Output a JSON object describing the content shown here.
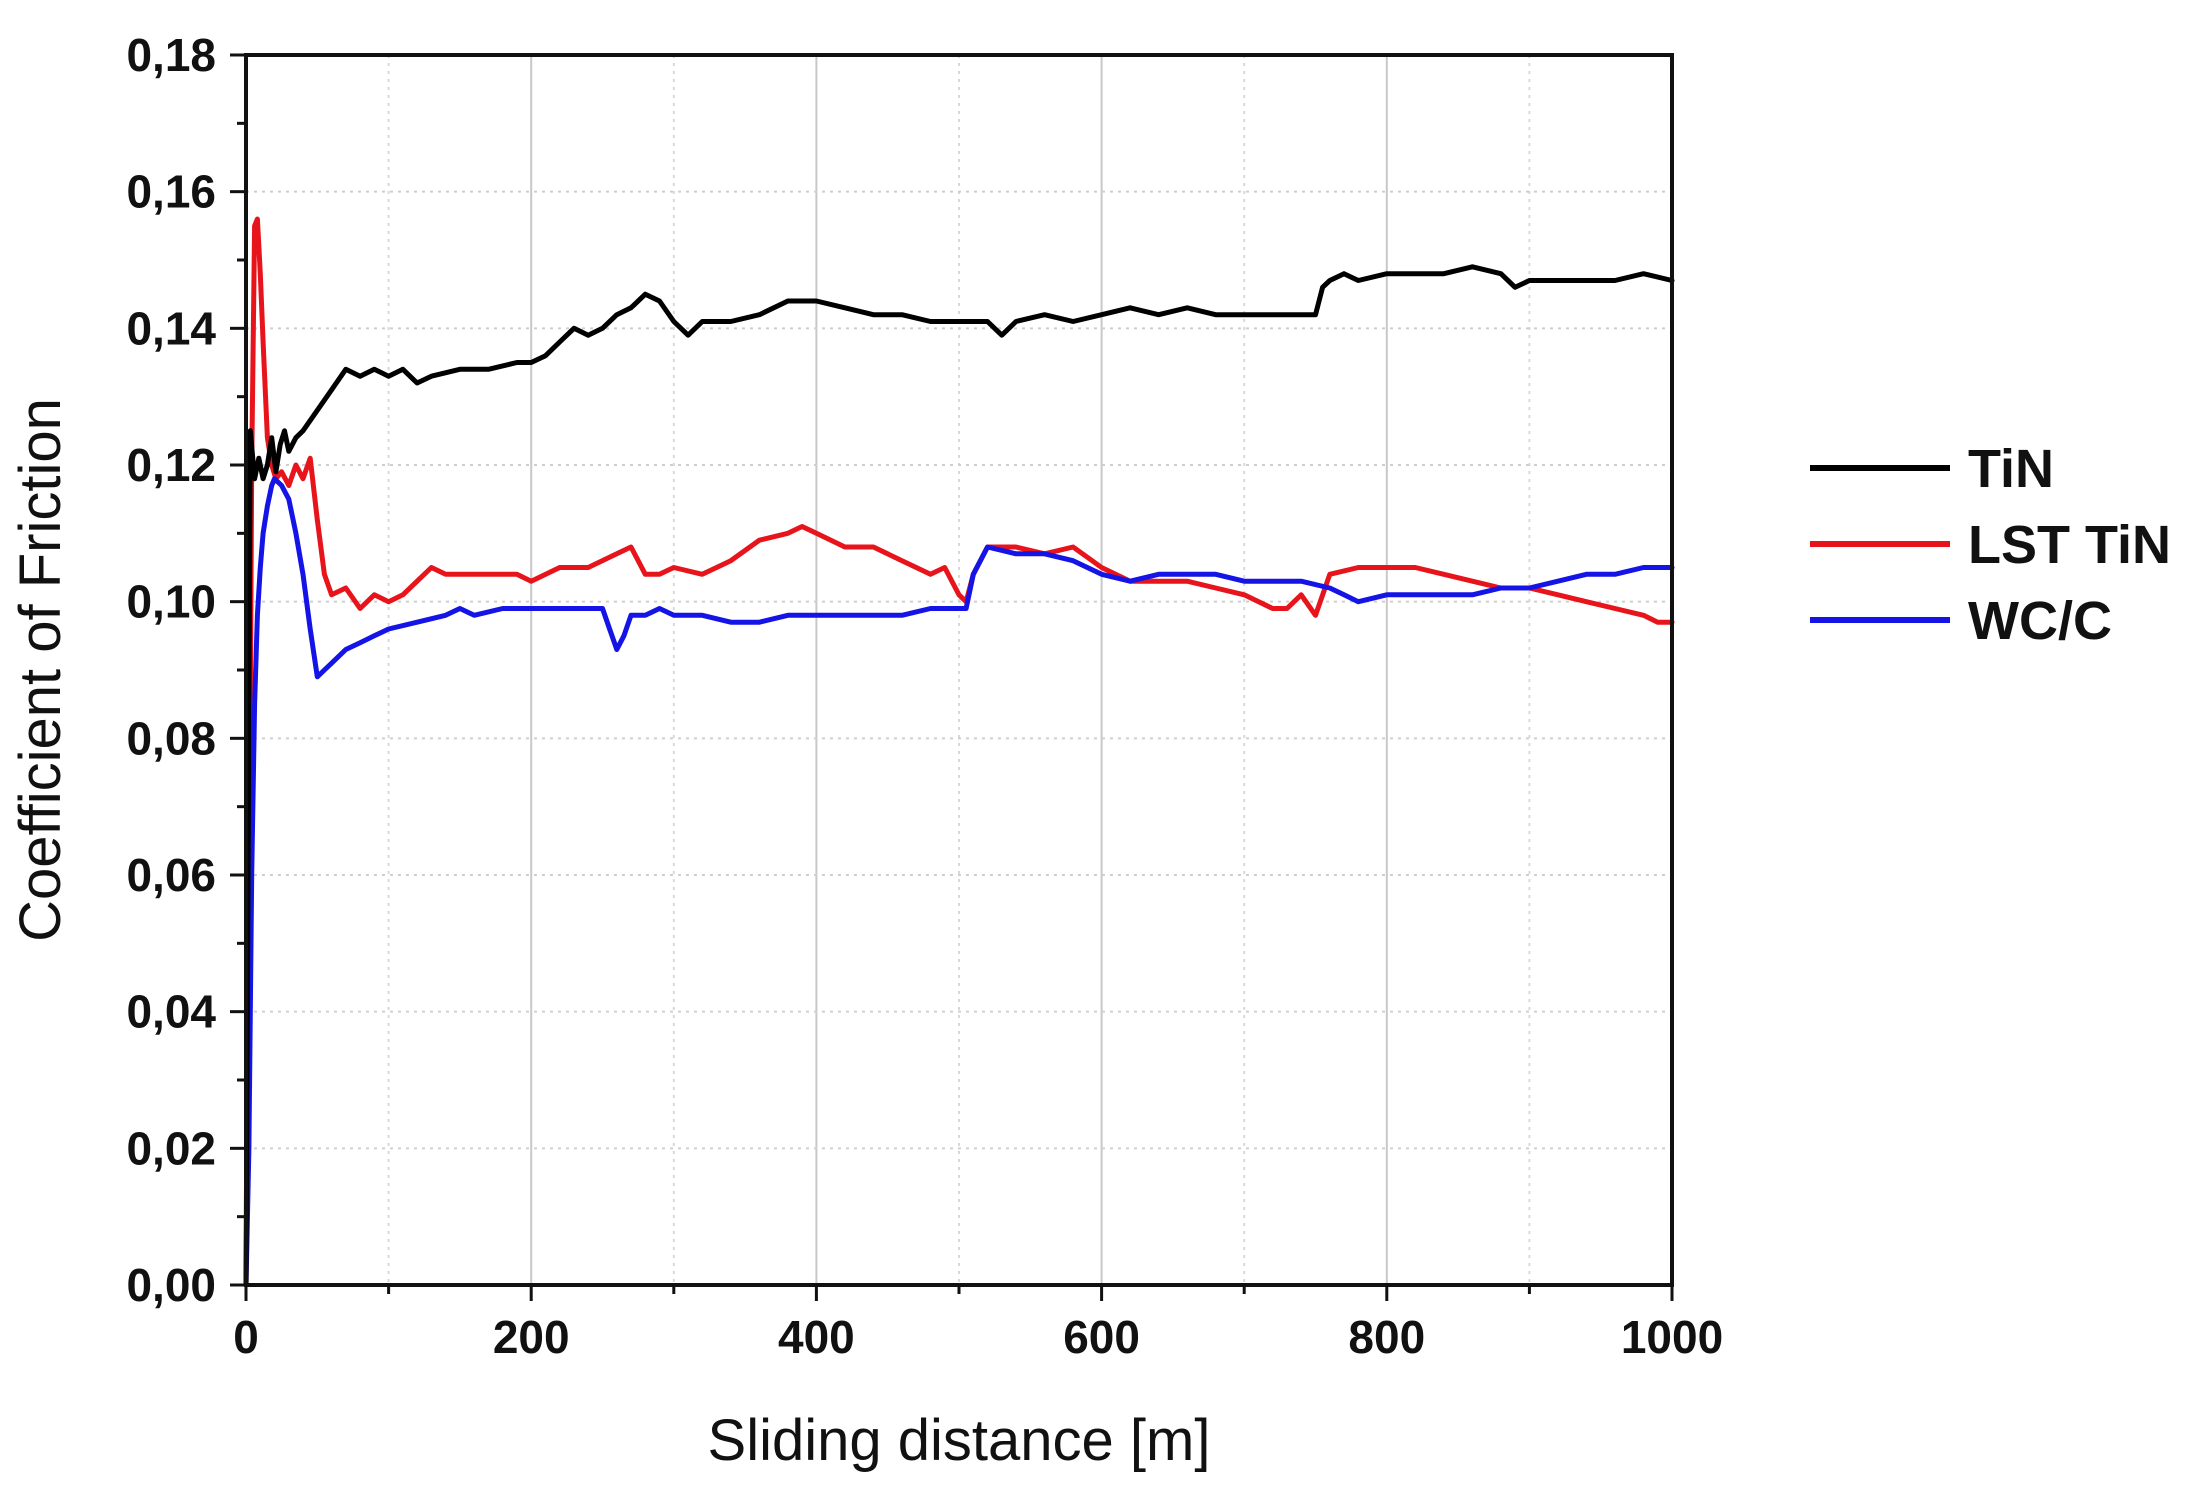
{
  "chart_data": {
    "type": "line",
    "title": "",
    "xlabel": "Sliding distance [m]",
    "ylabel": "Coefficient of Friction",
    "xlim": [
      0,
      1000
    ],
    "ylim": [
      0,
      0.18
    ],
    "grid": true,
    "legend_position": "right",
    "x_ticks": [
      0,
      200,
      400,
      600,
      800,
      1000
    ],
    "x_tick_labels": [
      "0",
      "200",
      "400",
      "600",
      "800",
      "1000"
    ],
    "y_ticks": [
      0,
      0.02,
      0.04,
      0.06,
      0.08,
      0.1,
      0.12,
      0.14,
      0.16,
      0.18
    ],
    "y_tick_labels": [
      "0,00",
      "0,02",
      "0,04",
      "0,06",
      "0,08",
      "0,10",
      "0,12",
      "0,14",
      "0,16",
      "0,18"
    ],
    "series": [
      {
        "name": "TiN",
        "color": "#000000",
        "x": [
          0,
          3,
          6,
          9,
          12,
          15,
          18,
          21,
          24,
          27,
          30,
          35,
          40,
          50,
          60,
          70,
          80,
          90,
          100,
          110,
          120,
          130,
          150,
          170,
          190,
          200,
          210,
          220,
          230,
          240,
          250,
          260,
          270,
          280,
          290,
          300,
          310,
          320,
          340,
          360,
          380,
          400,
          420,
          440,
          460,
          480,
          500,
          520,
          530,
          540,
          560,
          580,
          600,
          620,
          640,
          660,
          680,
          700,
          720,
          740,
          750,
          755,
          760,
          770,
          780,
          800,
          820,
          840,
          860,
          880,
          890,
          900,
          920,
          940,
          960,
          980,
          1000
        ],
        "y": [
          0.0,
          0.125,
          0.118,
          0.121,
          0.118,
          0.12,
          0.124,
          0.119,
          0.123,
          0.125,
          0.122,
          0.124,
          0.125,
          0.128,
          0.131,
          0.134,
          0.133,
          0.134,
          0.133,
          0.134,
          0.132,
          0.133,
          0.134,
          0.134,
          0.135,
          0.135,
          0.136,
          0.138,
          0.14,
          0.139,
          0.14,
          0.142,
          0.143,
          0.145,
          0.144,
          0.141,
          0.139,
          0.141,
          0.141,
          0.142,
          0.144,
          0.144,
          0.143,
          0.142,
          0.142,
          0.141,
          0.141,
          0.141,
          0.139,
          0.141,
          0.142,
          0.141,
          0.142,
          0.143,
          0.142,
          0.143,
          0.142,
          0.142,
          0.142,
          0.142,
          0.142,
          0.146,
          0.147,
          0.148,
          0.147,
          0.148,
          0.148,
          0.148,
          0.149,
          0.148,
          0.146,
          0.147,
          0.147,
          0.147,
          0.147,
          0.148,
          0.147
        ]
      },
      {
        "name": "LST TiN",
        "color": "#e8141c",
        "x": [
          0,
          2,
          4,
          6,
          8,
          10,
          12,
          15,
          18,
          21,
          25,
          30,
          35,
          40,
          45,
          50,
          55,
          60,
          70,
          80,
          90,
          100,
          110,
          120,
          130,
          140,
          150,
          170,
          190,
          200,
          220,
          240,
          260,
          270,
          280,
          290,
          300,
          320,
          340,
          360,
          380,
          390,
          400,
          420,
          440,
          460,
          480,
          490,
          500,
          505,
          510,
          520,
          540,
          560,
          580,
          600,
          620,
          640,
          660,
          680,
          700,
          720,
          730,
          740,
          750,
          760,
          780,
          800,
          820,
          840,
          860,
          880,
          900,
          920,
          940,
          960,
          980,
          990,
          1000
        ],
        "y": [
          0.0,
          0.05,
          0.12,
          0.155,
          0.156,
          0.148,
          0.138,
          0.124,
          0.12,
          0.118,
          0.119,
          0.117,
          0.12,
          0.118,
          0.121,
          0.112,
          0.104,
          0.101,
          0.102,
          0.099,
          0.101,
          0.1,
          0.101,
          0.103,
          0.105,
          0.104,
          0.104,
          0.104,
          0.104,
          0.103,
          0.105,
          0.105,
          0.107,
          0.108,
          0.104,
          0.104,
          0.105,
          0.104,
          0.106,
          0.109,
          0.11,
          0.111,
          0.11,
          0.108,
          0.108,
          0.106,
          0.104,
          0.105,
          0.101,
          0.1,
          0.104,
          0.108,
          0.108,
          0.107,
          0.108,
          0.105,
          0.103,
          0.103,
          0.103,
          0.102,
          0.101,
          0.099,
          0.099,
          0.101,
          0.098,
          0.104,
          0.105,
          0.105,
          0.105,
          0.104,
          0.103,
          0.102,
          0.102,
          0.101,
          0.1,
          0.099,
          0.098,
          0.097,
          0.097
        ]
      },
      {
        "name": "WC/C",
        "color": "#1414e6",
        "x": [
          0,
          2,
          4,
          6,
          8,
          10,
          12,
          15,
          18,
          20,
          25,
          30,
          35,
          40,
          45,
          50,
          55,
          60,
          70,
          80,
          90,
          100,
          120,
          140,
          150,
          160,
          180,
          200,
          220,
          240,
          250,
          255,
          260,
          265,
          270,
          280,
          290,
          300,
          320,
          340,
          360,
          380,
          400,
          420,
          440,
          460,
          480,
          500,
          505,
          510,
          520,
          540,
          560,
          580,
          600,
          620,
          640,
          660,
          680,
          700,
          720,
          740,
          760,
          770,
          780,
          800,
          820,
          840,
          860,
          880,
          900,
          920,
          940,
          960,
          980,
          1000
        ],
        "y": [
          0.0,
          0.02,
          0.06,
          0.085,
          0.098,
          0.105,
          0.11,
          0.114,
          0.117,
          0.118,
          0.117,
          0.115,
          0.11,
          0.104,
          0.096,
          0.089,
          0.09,
          0.091,
          0.093,
          0.094,
          0.095,
          0.096,
          0.097,
          0.098,
          0.099,
          0.098,
          0.099,
          0.099,
          0.099,
          0.099,
          0.099,
          0.096,
          0.093,
          0.095,
          0.098,
          0.098,
          0.099,
          0.098,
          0.098,
          0.097,
          0.097,
          0.098,
          0.098,
          0.098,
          0.098,
          0.098,
          0.099,
          0.099,
          0.099,
          0.104,
          0.108,
          0.107,
          0.107,
          0.106,
          0.104,
          0.103,
          0.104,
          0.104,
          0.104,
          0.103,
          0.103,
          0.103,
          0.102,
          0.101,
          0.1,
          0.101,
          0.101,
          0.101,
          0.101,
          0.102,
          0.102,
          0.103,
          0.104,
          0.104,
          0.105,
          0.105
        ]
      }
    ]
  }
}
